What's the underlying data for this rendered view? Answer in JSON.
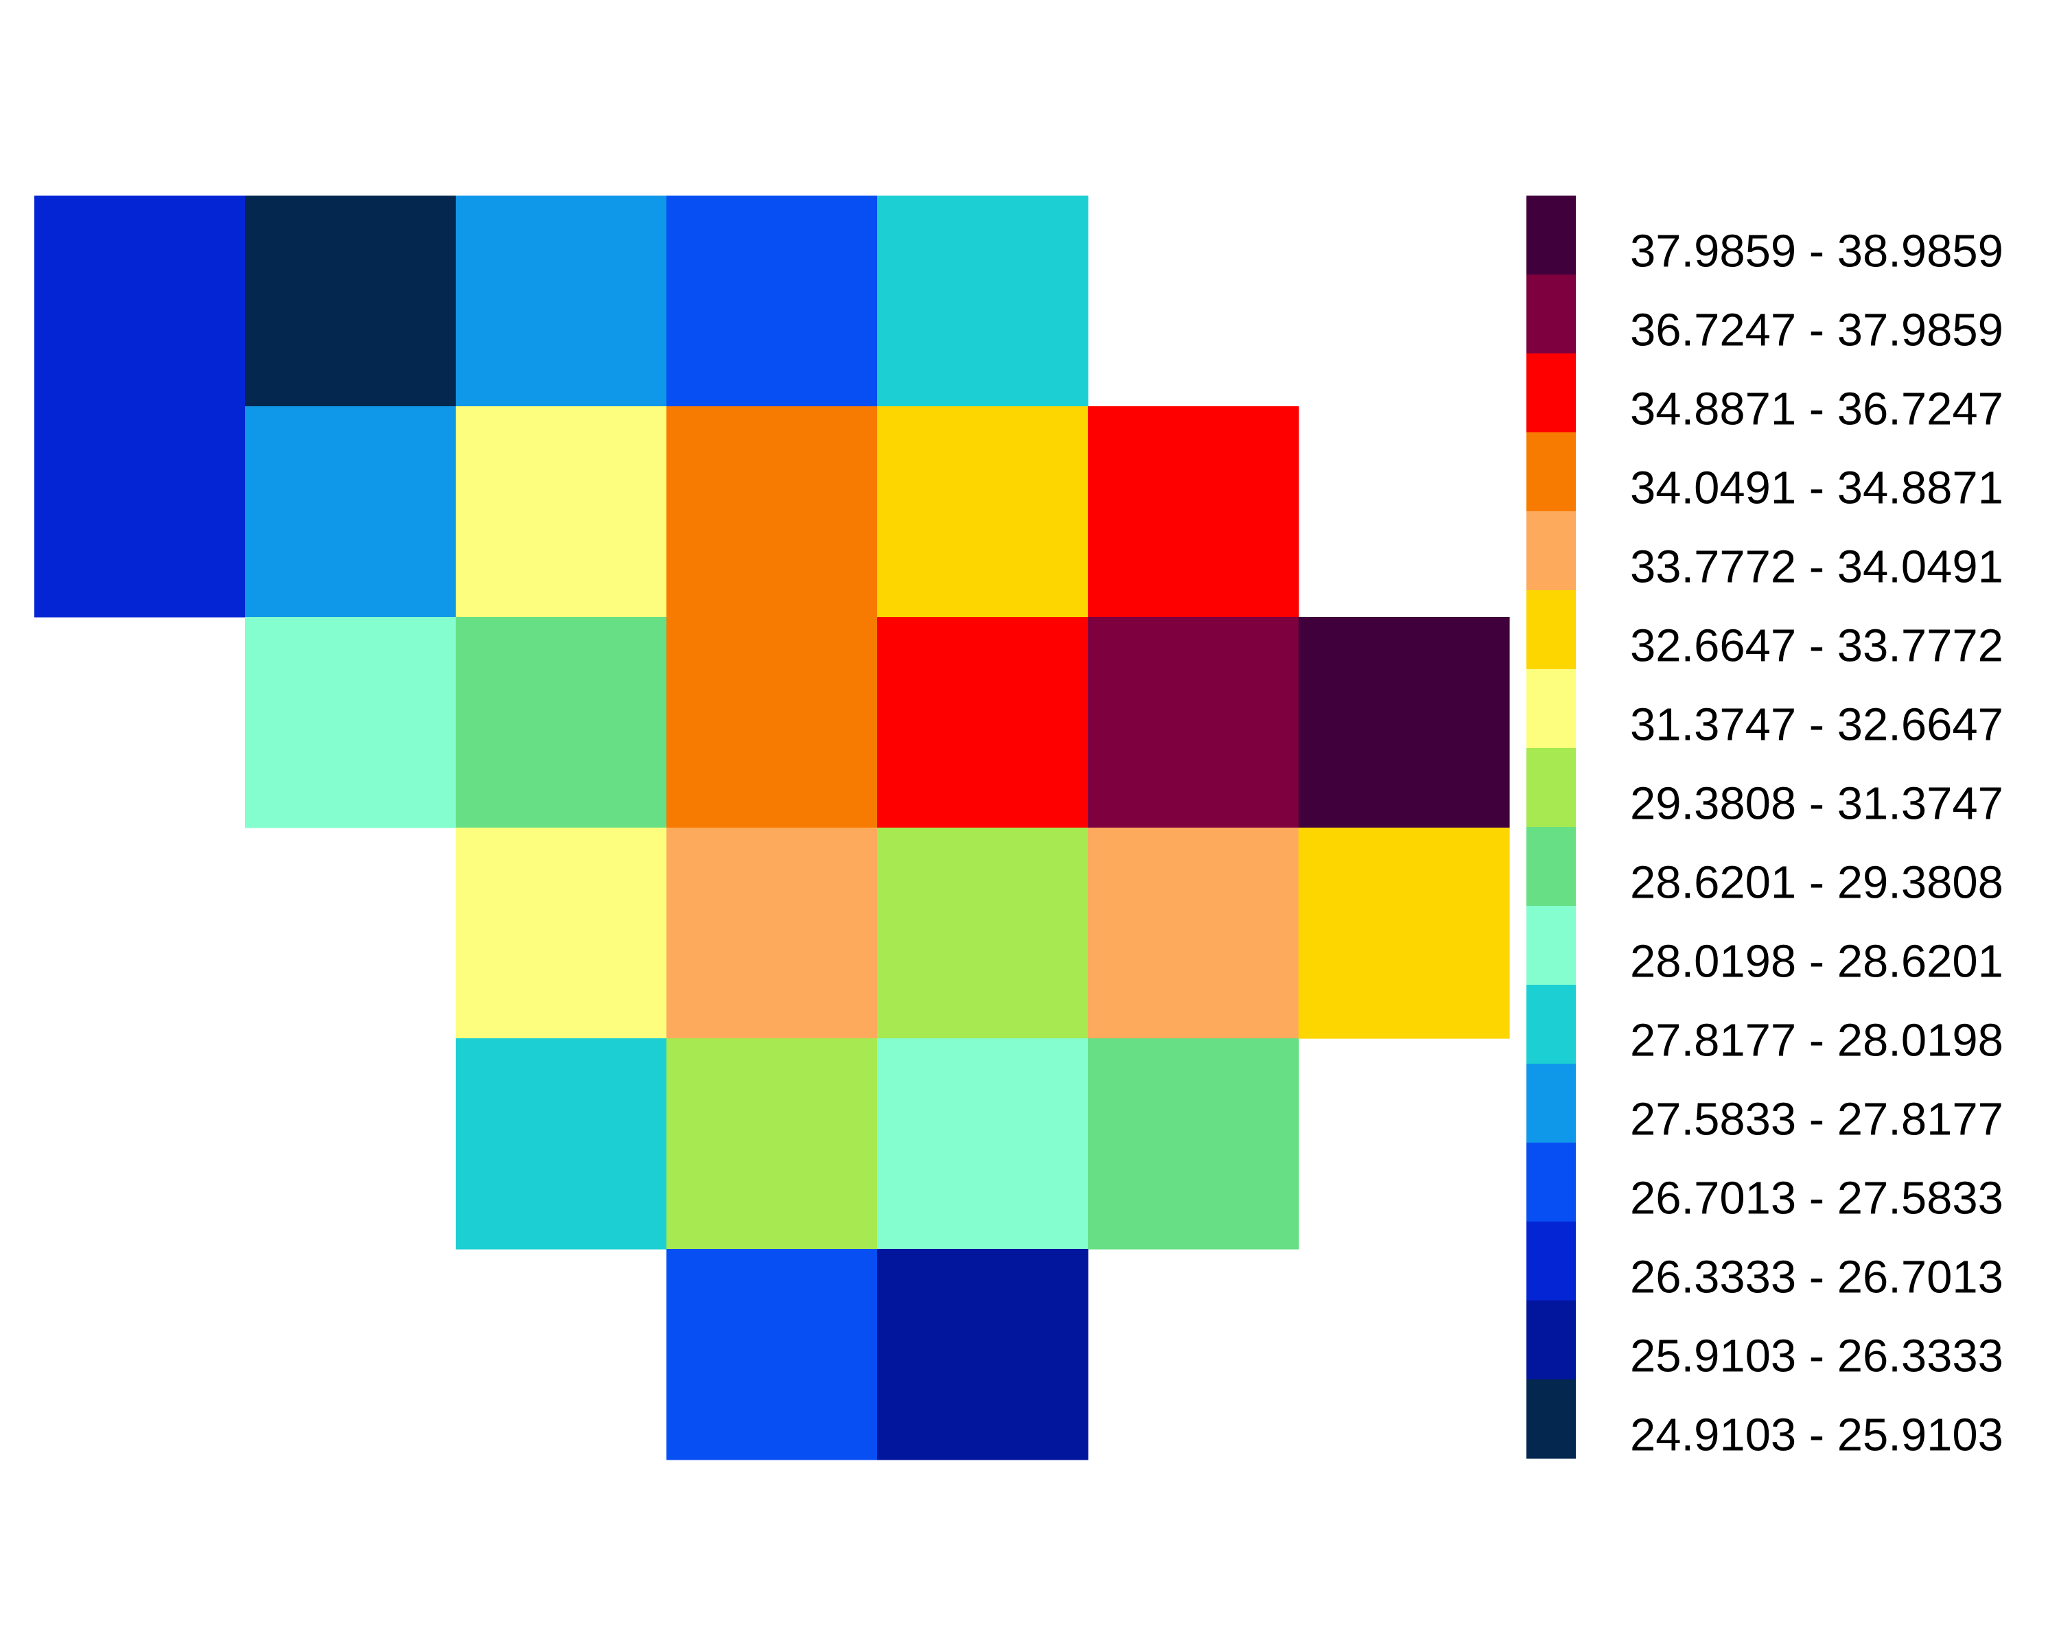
{
  "chart_data": {
    "type": "heatmap",
    "title": "",
    "xlabel": "",
    "ylabel": "",
    "grid": false,
    "legend_placement": "right",
    "legend": {
      "classes": [
        {
          "label": "37.9859 - 38.9859",
          "color": "#40003c"
        },
        {
          "label": "36.7247 - 37.9859",
          "color": "#7e003e"
        },
        {
          "label": "34.8871 - 36.7247",
          "color": "#ff0000"
        },
        {
          "label": "34.0491 - 34.8871",
          "color": "#f77b00"
        },
        {
          "label": "33.7772 - 34.0491",
          "color": "#fdaa5d"
        },
        {
          "label": "32.6647 - 33.7772",
          "color": "#fdd600"
        },
        {
          "label": "31.3747 - 32.6647",
          "color": "#fdfd7e"
        },
        {
          "label": "29.3808 - 31.3747",
          "color": "#a6e950"
        },
        {
          "label": "28.6201 - 29.3808",
          "color": "#67df85"
        },
        {
          "label": "28.0198 - 28.6201",
          "color": "#84fdcf"
        },
        {
          "label": "27.8177 - 28.0198",
          "color": "#1ccfd2"
        },
        {
          "label": "27.5833 - 27.8177",
          "color": "#0f97e9"
        },
        {
          "label": "26.7013 - 27.5833",
          "color": "#074ff2"
        },
        {
          "label": "26.3333 - 26.7013",
          "color": "#0425d4"
        },
        {
          "label": "25.9103 - 26.3333",
          "color": "#02159d"
        },
        {
          "label": "24.9103 - 25.9103",
          "color": "#03274f"
        }
      ]
    },
    "grid_rows": 7,
    "grid_cols": 7,
    "cells": [
      {
        "row": 0,
        "col": 0,
        "class": 13
      },
      {
        "row": 0,
        "col": 1,
        "class": 15
      },
      {
        "row": 0,
        "col": 2,
        "class": 11
      },
      {
        "row": 0,
        "col": 3,
        "class": 12
      },
      {
        "row": 0,
        "col": 4,
        "class": 10
      },
      {
        "row": 1,
        "col": 0,
        "class": 13
      },
      {
        "row": 1,
        "col": 1,
        "class": 11
      },
      {
        "row": 1,
        "col": 2,
        "class": 6
      },
      {
        "row": 1,
        "col": 3,
        "class": 3
      },
      {
        "row": 1,
        "col": 4,
        "class": 5
      },
      {
        "row": 1,
        "col": 5,
        "class": 2
      },
      {
        "row": 2,
        "col": 1,
        "class": 9
      },
      {
        "row": 2,
        "col": 2,
        "class": 8
      },
      {
        "row": 2,
        "col": 3,
        "class": 3
      },
      {
        "row": 2,
        "col": 4,
        "class": 2
      },
      {
        "row": 2,
        "col": 5,
        "class": 1
      },
      {
        "row": 2,
        "col": 6,
        "class": 0
      },
      {
        "row": 3,
        "col": 2,
        "class": 6
      },
      {
        "row": 3,
        "col": 3,
        "class": 4
      },
      {
        "row": 3,
        "col": 4,
        "class": 7
      },
      {
        "row": 3,
        "col": 5,
        "class": 4
      },
      {
        "row": 3,
        "col": 6,
        "class": 5
      },
      {
        "row": 4,
        "col": 2,
        "class": 10
      },
      {
        "row": 4,
        "col": 3,
        "class": 7
      },
      {
        "row": 4,
        "col": 4,
        "class": 9
      },
      {
        "row": 4,
        "col": 5,
        "class": 8
      },
      {
        "row": 5,
        "col": 3,
        "class": 12
      },
      {
        "row": 5,
        "col": 4,
        "class": 14
      }
    ]
  }
}
